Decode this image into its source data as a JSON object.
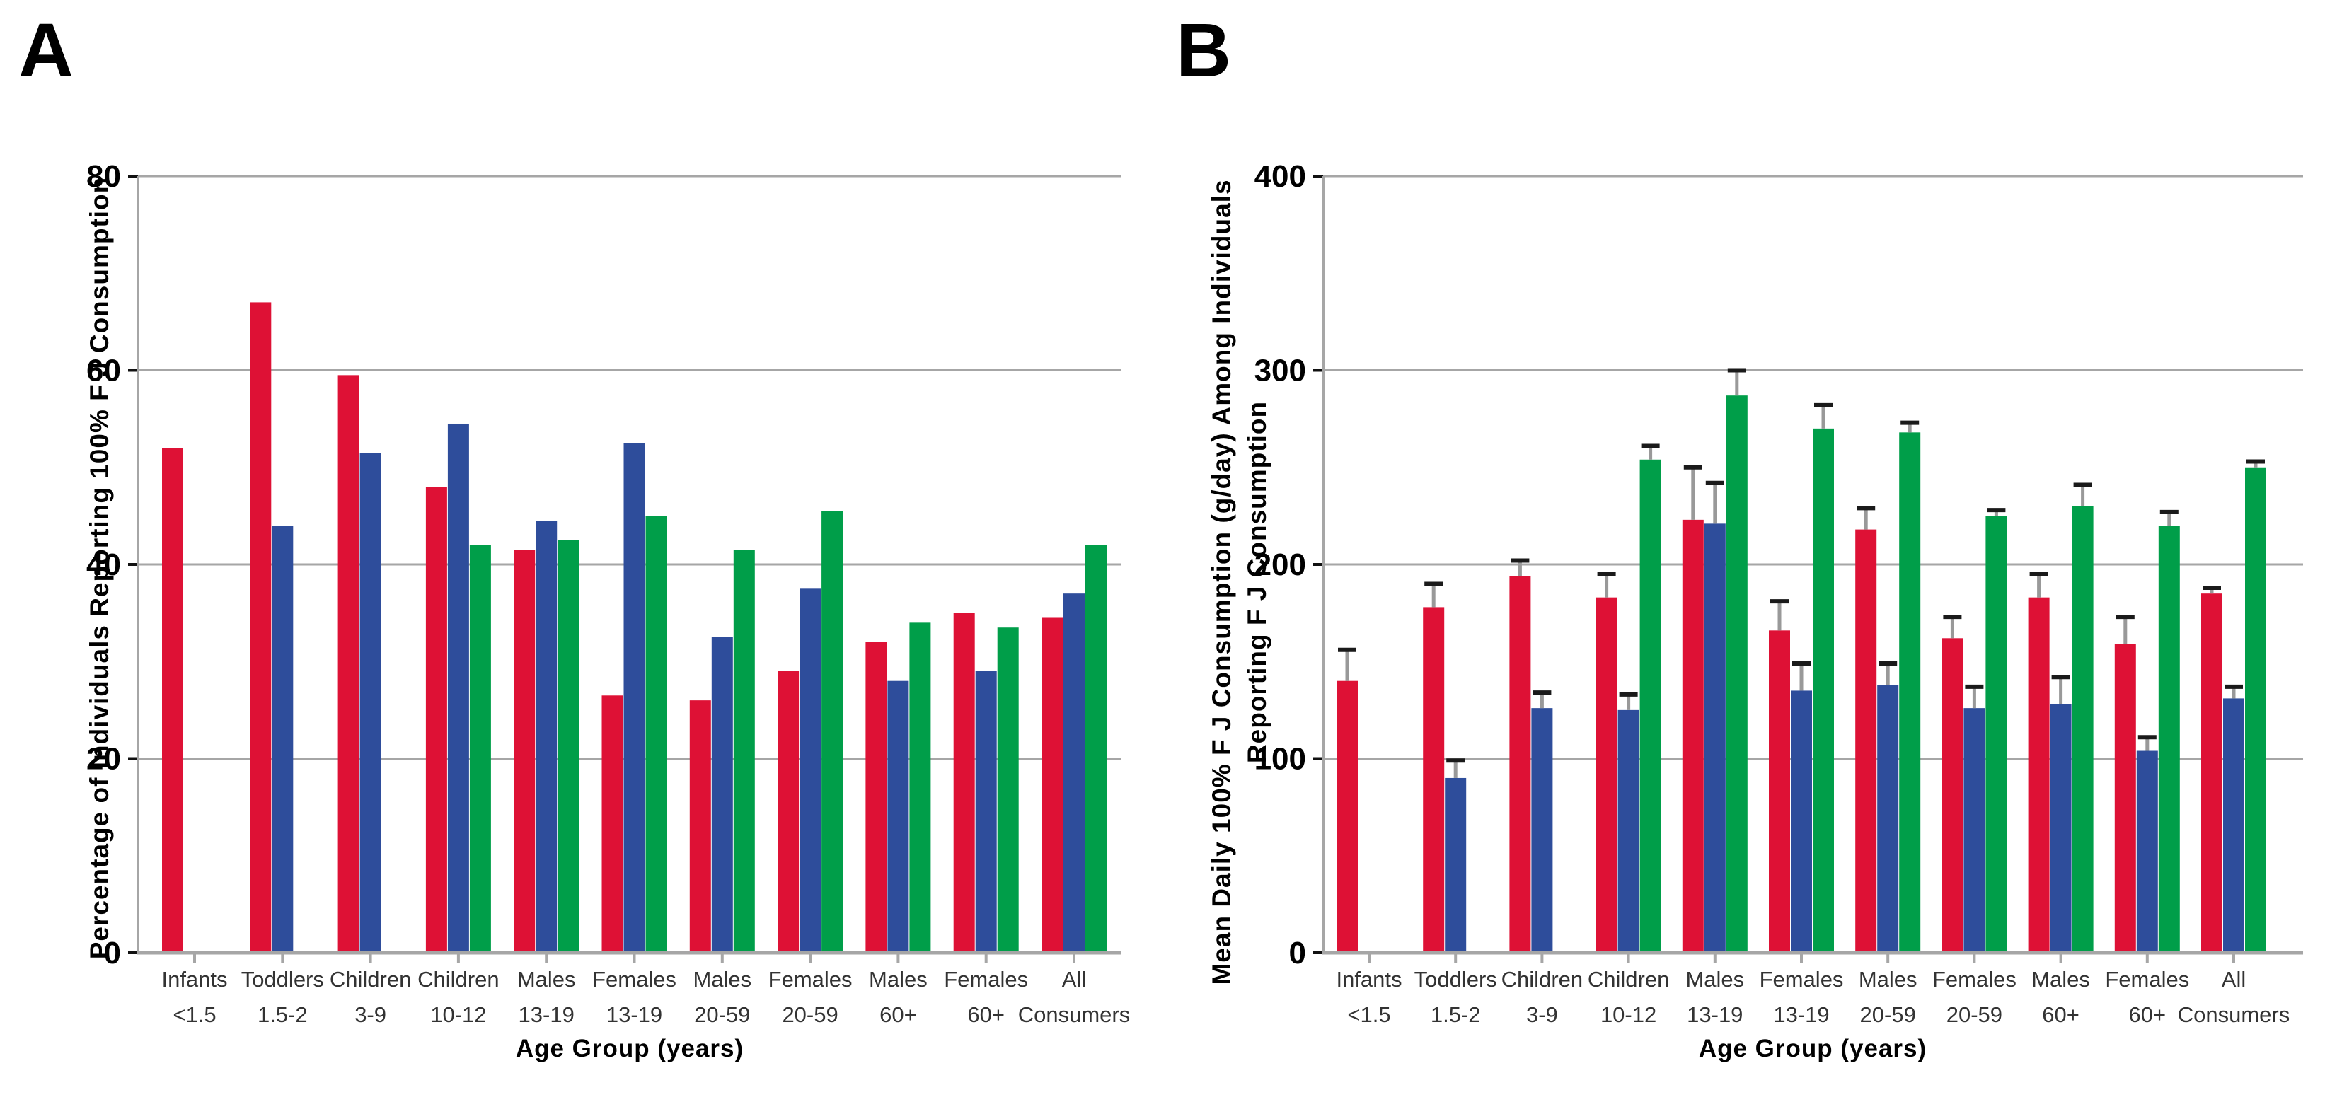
{
  "figure": {
    "panel_a_letter": "A",
    "panel_b_letter": "B",
    "x_axis_title": "Age Group (years)"
  },
  "colors": {
    "red": "#DE1135",
    "blue": "#2E4D9B",
    "green": "#009E49",
    "gridline": "#a6a6a6",
    "axis": "#a6a6a6",
    "error_stem": "#999999",
    "error_cap": "#1a1a1a",
    "category_text": "#333333",
    "tick_text": "#000000"
  },
  "chart_data": [
    {
      "id": "A",
      "type": "bar",
      "panel_label": "A",
      "ylabel": "Percentage of Individuals Reporting 100% F J  Consumption",
      "xlabel": "Age Group (years)",
      "ylim": [
        0,
        80
      ],
      "yticks": [
        0,
        20,
        40,
        60,
        80
      ],
      "grid": true,
      "legend": "none",
      "categories": [
        {
          "line1": "Infants",
          "line2": "<1.5"
        },
        {
          "line1": "Toddlers",
          "line2": "1.5-2"
        },
        {
          "line1": "Children",
          "line2": "3-9"
        },
        {
          "line1": "Children",
          "line2": "10-12"
        },
        {
          "line1": "Males",
          "line2": "13-19"
        },
        {
          "line1": "Females",
          "line2": "13-19"
        },
        {
          "line1": "Males",
          "line2": "20-59"
        },
        {
          "line1": "Females",
          "line2": "20-59"
        },
        {
          "line1": "Males",
          "line2": "60+"
        },
        {
          "line1": "Females",
          "line2": "60+"
        },
        {
          "line1": "All",
          "line2": "Consumers"
        }
      ],
      "series": [
        {
          "name": "series-red",
          "color": "#DE1135",
          "values": [
            52,
            67,
            59.5,
            48,
            41.5,
            26.5,
            26,
            29,
            32,
            35,
            34.5
          ]
        },
        {
          "name": "series-blue",
          "color": "#2E4D9B",
          "values": [
            null,
            44,
            51.5,
            54.5,
            44.5,
            52.5,
            32.5,
            37.5,
            28,
            29,
            37
          ]
        },
        {
          "name": "series-green",
          "color": "#009E49",
          "values": [
            null,
            null,
            null,
            42,
            42.5,
            45,
            41.5,
            45.5,
            34,
            33.5,
            42
          ]
        }
      ]
    },
    {
      "id": "B",
      "type": "bar",
      "panel_label": "B",
      "ylabel": "Mean Daily 100% F J Consumption (g/day) Among Individuals Reporting F J Consumption",
      "ylabel_lines": [
        "Mean Daily 100% F J Consumption (g/day) Among Individuals",
        "Reporting F J Consumption"
      ],
      "xlabel": "Age Group (years)",
      "ylim": [
        0,
        400
      ],
      "yticks": [
        0,
        100,
        200,
        300,
        400
      ],
      "grid": true,
      "legend": "none",
      "categories": [
        {
          "line1": "Infants",
          "line2": "<1.5"
        },
        {
          "line1": "Toddlers",
          "line2": "1.5-2"
        },
        {
          "line1": "Children",
          "line2": "3-9"
        },
        {
          "line1": "Children",
          "line2": "10-12"
        },
        {
          "line1": "Males",
          "line2": "13-19"
        },
        {
          "line1": "Females",
          "line2": "13-19"
        },
        {
          "line1": "Males",
          "line2": "20-59"
        },
        {
          "line1": "Females",
          "line2": "20-59"
        },
        {
          "line1": "Males",
          "line2": "60+"
        },
        {
          "line1": "Females",
          "line2": "60+"
        },
        {
          "line1": "All",
          "line2": "Consumers"
        }
      ],
      "series": [
        {
          "name": "series-red",
          "color": "#DE1135",
          "values": [
            140,
            178,
            194,
            183,
            223,
            166,
            218,
            162,
            183,
            159,
            185
          ],
          "errors_up": [
            16,
            12,
            8,
            12,
            27,
            15,
            11,
            11,
            12,
            14,
            3
          ]
        },
        {
          "name": "series-blue",
          "color": "#2E4D9B",
          "values": [
            null,
            90,
            126,
            125,
            221,
            135,
            138,
            126,
            128,
            104,
            131
          ],
          "errors_up": [
            null,
            9,
            8,
            8,
            21,
            14,
            11,
            11,
            14,
            7,
            6
          ]
        },
        {
          "name": "series-green",
          "color": "#009E49",
          "values": [
            null,
            null,
            null,
            254,
            287,
            270,
            268,
            225,
            230,
            220,
            250
          ],
          "errors_up": [
            null,
            null,
            null,
            7,
            13,
            12,
            5,
            3,
            11,
            7,
            3
          ]
        }
      ]
    }
  ]
}
